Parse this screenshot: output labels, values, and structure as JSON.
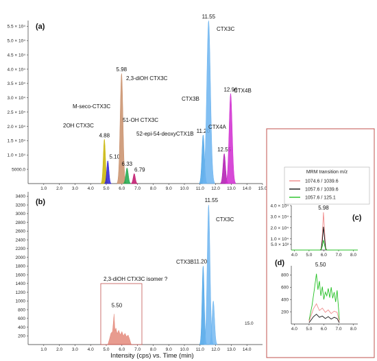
{
  "xlabel": "Intensity (cps) vs. Time (min)",
  "chart_data": [
    {
      "id": "a",
      "panel_label": "(a)",
      "type": "area",
      "xlim": [
        0,
        15
      ],
      "ylim": [
        0,
        57000
      ],
      "x_ticks": [
        1.0,
        2.0,
        3.0,
        4.0,
        5.0,
        6.0,
        7.0,
        8.0,
        9.0,
        10.0,
        11.0,
        12.0,
        13.0,
        14.0,
        15.0
      ],
      "x_tick_labels": [
        "1.0",
        "2.0",
        "3.0",
        "4.0",
        "5.0",
        "6.0",
        "7.0",
        "8.0",
        "9.0",
        "10.0",
        "11.0",
        "12.0",
        "13.0",
        "14.0",
        "15.0"
      ],
      "y_ticks": [
        5000,
        10000,
        15000,
        20000,
        25000,
        30000,
        35000,
        40000,
        45000,
        50000,
        55000
      ],
      "y_tick_labels": [
        "5000.0",
        "1.0 × 10⁴",
        "1.5 × 10⁴",
        "2.0 × 10⁴",
        "2.5 × 10⁴",
        "3.0 × 10⁴",
        "3.5 × 10⁴",
        "4.0 × 10⁴",
        "4.5 × 10⁴",
        "5.0 × 10⁴",
        "5.5 × 10⁴"
      ],
      "peaks": [
        {
          "rt": 4.88,
          "height": 15500,
          "color": "#c8b400",
          "label": "4.88"
        },
        {
          "rt": 5.1,
          "height": 8000,
          "color": "#2b1fd6",
          "label": "5.10"
        },
        {
          "rt": 5.98,
          "height": 38500,
          "color": "#c98f6a",
          "label": "5.98"
        },
        {
          "rt": 6.33,
          "height": 5500,
          "color": "#1aa84a",
          "label": "6.33"
        },
        {
          "rt": 6.79,
          "height": 3500,
          "color": "#c0126a",
          "label": "6.79"
        },
        {
          "rt": 11.2,
          "height": 17000,
          "color": "#4aa3e8",
          "label": "11.20"
        },
        {
          "rt": 11.55,
          "height": 57000,
          "color": "#6cb4f0",
          "label": "11.55"
        },
        {
          "rt": 12.55,
          "height": 10500,
          "color": "#b015b0",
          "label": "12.55"
        },
        {
          "rt": 12.96,
          "height": 31500,
          "color": "#d02ad0",
          "label": "12.96"
        }
      ],
      "annotations": [
        {
          "text": "M-seco-CTX3C"
        },
        {
          "text": "2OH CTX3C"
        },
        {
          "text": "2,3-diOH CTX3C"
        },
        {
          "text": "51-OH CTX3C"
        },
        {
          "text": "52-epi-54-deoxyCTX1B"
        },
        {
          "text": "CTX3B"
        },
        {
          "text": "CTX3C"
        },
        {
          "text": "CTX4A"
        },
        {
          "text": "CTX4B"
        }
      ]
    },
    {
      "id": "b",
      "panel_label": "(b)",
      "type": "area",
      "xlim": [
        0,
        15
      ],
      "ylim": [
        0,
        3500
      ],
      "x_ticks": [
        1.0,
        2.0,
        3.0,
        4.0,
        5.0,
        6.0,
        7.0,
        8.0,
        9.0,
        10.0,
        11.0,
        12.0,
        13.0,
        14.0
      ],
      "x_tick_labels": [
        "1.0",
        "2.0",
        "3.0",
        "4.0",
        "5.0",
        "6.0",
        "7.0",
        "8.0",
        "9.0",
        "10.0",
        "11.0",
        "12.0",
        "13.0",
        "14.0"
      ],
      "y_ticks": [
        200,
        400,
        600,
        800,
        1000,
        1200,
        1400,
        1600,
        1800,
        2000,
        2200,
        2400,
        2600,
        2800,
        3000,
        3200,
        3400
      ],
      "y_tick_labels": [
        "200",
        "400",
        "600",
        "800",
        "1000",
        "1200",
        "1400",
        "1600",
        "1800",
        "2000",
        "2200",
        "2400",
        "2600",
        "2800",
        "3000",
        "3200",
        "3400"
      ],
      "end_label": "15.0",
      "peaks": [
        {
          "rt": 5.5,
          "height": 700,
          "color": "#e07a6a",
          "label": "5.50"
        },
        {
          "rt": 11.2,
          "height": 1800,
          "color": "#4aa3e8",
          "label": "11.20"
        },
        {
          "rt": 11.55,
          "height": 3200,
          "color": "#6cb4f0",
          "label": "11.55"
        }
      ],
      "annotations": [
        {
          "text": "2,3-diOH CTX3C isomer ?"
        },
        {
          "text": "CTX3B"
        },
        {
          "text": "CTX3C"
        }
      ]
    },
    {
      "id": "c",
      "panel_label": "(c)",
      "type": "line",
      "xlim": [
        3.8,
        8.3
      ],
      "ylim": [
        0,
        40000
      ],
      "x_ticks": [
        4.0,
        5.0,
        6.0,
        7.0,
        8.0
      ],
      "x_tick_labels": [
        "4.0",
        "5.0",
        "6.0",
        "7.0",
        "8.0"
      ],
      "y_ticks": [
        5000,
        10000,
        20000,
        30000,
        40000
      ],
      "y_tick_labels": [
        "5.0 × 10³",
        "1.0 × 10⁴",
        "2.0 × 10⁴",
        "3.0 × 10⁴",
        "4.0 × 10⁴"
      ],
      "peak_label": "5.98",
      "series": [
        {
          "name": "1074.6 / 1039.6",
          "rt": 5.98,
          "height": 34000
        },
        {
          "name": "1057.6 / 1039.6",
          "rt": 5.98,
          "height": 21000
        },
        {
          "name": "1057.6 / 125.1",
          "rt": 5.98,
          "height": 9000
        }
      ]
    },
    {
      "id": "d",
      "panel_label": "(d)",
      "type": "line",
      "xlim": [
        3.8,
        8.3
      ],
      "ylim": [
        0,
        950
      ],
      "x_ticks": [
        4.0,
        5.0,
        6.0,
        7.0,
        8.0
      ],
      "x_tick_labels": [
        "4.0",
        "5.0",
        "6.0",
        "7.0",
        "8.0"
      ],
      "y_ticks": [
        200,
        400,
        600,
        800
      ],
      "y_tick_labels": [
        "200",
        "400",
        "600",
        "800"
      ],
      "peak_label": "5.50"
    }
  ],
  "legend": {
    "title": "MRM transition m/z",
    "entries": [
      {
        "name": "1074.6 / 1039.6",
        "color": "#f08a8a"
      },
      {
        "name": "1057.6 / 1039.6",
        "color": "#111111"
      },
      {
        "name": "1057.6 / 125.1",
        "color": "#22c022"
      }
    ]
  },
  "colors": {
    "frame": "#c0504d",
    "axis": "#333333"
  }
}
